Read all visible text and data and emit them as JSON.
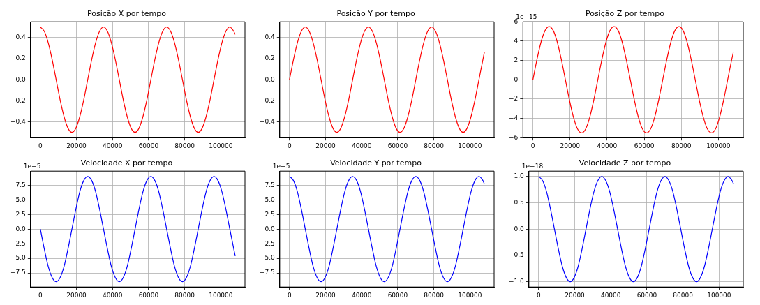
{
  "chart_data": [
    {
      "type": "line",
      "title": "Posição X por tempo",
      "x": [
        0,
        2187.5,
        4375,
        6562.5,
        8750,
        10937.5,
        13125,
        15312.5,
        17500,
        19687.5,
        21875,
        24062.5,
        26250,
        28437.5,
        30625,
        32812.5,
        35000,
        37187.5,
        39375,
        41562.5,
        43750,
        45937.5,
        48125,
        50312.5,
        52500,
        54687.5,
        56875,
        59062.5,
        61250,
        63437.5,
        65625,
        67812.5,
        70000,
        72187.5,
        74375,
        76562.5,
        78750,
        80937.5,
        83125,
        85312.5,
        87500,
        89687.5,
        91875,
        94062.5,
        96250,
        98437.5,
        100625,
        102812.5,
        105000,
        107187.5,
        108000
      ],
      "xlim": [
        -5400,
        113400
      ],
      "xticks": [
        0,
        20000,
        40000,
        60000,
        80000,
        100000
      ],
      "ylim": [
        -0.55,
        0.55
      ],
      "yticks": [
        {
          "value": -0.4,
          "label": "−0.4"
        },
        {
          "value": -0.2,
          "label": "−0.2"
        },
        {
          "value": 0,
          "label": "0.0"
        },
        {
          "value": 0.2,
          "label": "0.2"
        },
        {
          "value": 0.4,
          "label": "0.4"
        }
      ],
      "grid": true,
      "series": [
        {
          "color": "#ff0000",
          "values": [
            0.5,
            0.46,
            0.35,
            0.19,
            0,
            -0.19,
            -0.35,
            -0.46,
            -0.5,
            -0.46,
            -0.35,
            -0.19,
            0,
            0.19,
            0.35,
            0.46,
            0.5,
            0.46,
            0.35,
            0.19,
            0,
            -0.19,
            -0.35,
            -0.46,
            -0.5,
            -0.46,
            -0.35,
            -0.19,
            0,
            0.19,
            0.35,
            0.46,
            0.5,
            0.46,
            0.35,
            0.19,
            0,
            -0.19,
            -0.35,
            -0.46,
            -0.5,
            -0.46,
            -0.35,
            -0.19,
            0,
            0.19,
            0.35,
            0.46,
            0.5,
            0.46,
            0.43
          ]
        }
      ]
    },
    {
      "type": "line",
      "title": "Posição Y por tempo",
      "x": [
        0,
        2187.5,
        4375,
        6562.5,
        8750,
        10937.5,
        13125,
        15312.5,
        17500,
        19687.5,
        21875,
        24062.5,
        26250,
        28437.5,
        30625,
        32812.5,
        35000,
        37187.5,
        39375,
        41562.5,
        43750,
        45937.5,
        48125,
        50312.5,
        52500,
        54687.5,
        56875,
        59062.5,
        61250,
        63437.5,
        65625,
        67812.5,
        70000,
        72187.5,
        74375,
        76562.5,
        78750,
        80937.5,
        83125,
        85312.5,
        87500,
        89687.5,
        91875,
        94062.5,
        96250,
        98437.5,
        100625,
        102812.5,
        105000,
        107187.5,
        108000
      ],
      "xlim": [
        -5400,
        113400
      ],
      "xticks": [
        0,
        20000,
        40000,
        60000,
        80000,
        100000
      ],
      "ylim": [
        -0.55,
        0.55
      ],
      "yticks": [
        {
          "value": -0.4,
          "label": "−0.4"
        },
        {
          "value": -0.2,
          "label": "−0.2"
        },
        {
          "value": 0,
          "label": "0.0"
        },
        {
          "value": 0.2,
          "label": "0.2"
        },
        {
          "value": 0.4,
          "label": "0.4"
        }
      ],
      "grid": true,
      "series": [
        {
          "color": "#ff0000",
          "values": [
            0,
            0.19,
            0.35,
            0.46,
            0.5,
            0.46,
            0.35,
            0.19,
            0,
            -0.19,
            -0.35,
            -0.46,
            -0.5,
            -0.46,
            -0.35,
            -0.19,
            0,
            0.19,
            0.35,
            0.46,
            0.5,
            0.46,
            0.35,
            0.19,
            0,
            -0.19,
            -0.35,
            -0.46,
            -0.5,
            -0.46,
            -0.35,
            -0.19,
            0,
            0.19,
            0.35,
            0.46,
            0.5,
            0.46,
            0.35,
            0.19,
            0,
            -0.19,
            -0.35,
            -0.46,
            -0.5,
            -0.46,
            -0.35,
            -0.19,
            0,
            0.19,
            0.26
          ]
        }
      ]
    },
    {
      "type": "line",
      "title": "Posição Z por tempo",
      "annotations": [
        "1e−15"
      ],
      "x": [
        0,
        2187.5,
        4375,
        6562.5,
        8750,
        10937.5,
        13125,
        15312.5,
        17500,
        19687.5,
        21875,
        24062.5,
        26250,
        28437.5,
        30625,
        32812.5,
        35000,
        37187.5,
        39375,
        41562.5,
        43750,
        45937.5,
        48125,
        50312.5,
        52500,
        54687.5,
        56875,
        59062.5,
        61250,
        63437.5,
        65625,
        67812.5,
        70000,
        72187.5,
        74375,
        76562.5,
        78750,
        80937.5,
        83125,
        85312.5,
        87500,
        89687.5,
        91875,
        94062.5,
        96250,
        98437.5,
        100625,
        102812.5,
        105000,
        107187.5,
        108000
      ],
      "xlim": [
        -5400,
        113400
      ],
      "xticks": [
        0,
        20000,
        40000,
        60000,
        80000,
        100000
      ],
      "ylim": [
        -6,
        6
      ],
      "yticks": [
        {
          "value": -6,
          "label": "−6"
        },
        {
          "value": -4,
          "label": "−4"
        },
        {
          "value": -2,
          "label": "−2"
        },
        0,
        2,
        4,
        6
      ],
      "grid": true,
      "series": [
        {
          "color": "#ff0000",
          "values": [
            0,
            2.1,
            3.9,
            5.1,
            5.5,
            5.1,
            3.9,
            2.1,
            0,
            -2.1,
            -3.9,
            -5.1,
            -5.5,
            -5.1,
            -3.9,
            -2.1,
            0,
            2.1,
            3.9,
            5.1,
            5.5,
            5.1,
            3.9,
            2.1,
            0,
            -2.1,
            -3.9,
            -5.1,
            -5.5,
            -5.1,
            -3.9,
            -2.1,
            0,
            2.1,
            3.9,
            5.1,
            5.5,
            5.1,
            3.9,
            2.1,
            0,
            -2.1,
            -3.9,
            -5.1,
            -5.5,
            -5.1,
            -3.9,
            -2.1,
            0,
            2.1,
            2.8
          ]
        }
      ]
    },
    {
      "type": "line",
      "title": "Velocidade X por tempo",
      "annotations": [
        "1e−5"
      ],
      "x": [
        0,
        2187.5,
        4375,
        6562.5,
        8750,
        10937.5,
        13125,
        15312.5,
        17500,
        19687.5,
        21875,
        24062.5,
        26250,
        28437.5,
        30625,
        32812.5,
        35000,
        37187.5,
        39375,
        41562.5,
        43750,
        45937.5,
        48125,
        50312.5,
        52500,
        54687.5,
        56875,
        59062.5,
        61250,
        63437.5,
        65625,
        67812.5,
        70000,
        72187.5,
        74375,
        76562.5,
        78750,
        80937.5,
        83125,
        85312.5,
        87500,
        89687.5,
        91875,
        94062.5,
        96250,
        98437.5,
        100625,
        102812.5,
        105000,
        107187.5,
        108000
      ],
      "xlim": [
        -5400,
        113400
      ],
      "xticks": [
        0,
        20000,
        40000,
        60000,
        80000,
        100000
      ],
      "ylim": [
        -9.9,
        9.9
      ],
      "yticks": [
        {
          "value": -7.5,
          "label": "−7.5"
        },
        {
          "value": -5,
          "label": "−5.0"
        },
        {
          "value": -2.5,
          "label": "−2.5"
        },
        {
          "value": 0,
          "label": "0.0"
        },
        {
          "value": 2.5,
          "label": "2.5"
        },
        {
          "value": 5,
          "label": "5.0"
        },
        {
          "value": 7.5,
          "label": "7.5"
        }
      ],
      "grid": true,
      "series": [
        {
          "color": "#0000ff",
          "values": [
            0,
            -3.4,
            -6.4,
            -8.3,
            -9,
            -8.3,
            -6.4,
            -3.4,
            0,
            3.4,
            6.4,
            8.3,
            9,
            8.3,
            6.4,
            3.4,
            0,
            -3.4,
            -6.4,
            -8.3,
            -9,
            -8.3,
            -6.4,
            -3.4,
            0,
            3.4,
            6.4,
            8.3,
            9,
            8.3,
            6.4,
            3.4,
            0,
            -3.4,
            -6.4,
            -8.3,
            -9,
            -8.3,
            -6.4,
            -3.4,
            0,
            3.4,
            6.4,
            8.3,
            9,
            8.3,
            6.4,
            3.4,
            0,
            -3.4,
            -4.6
          ]
        }
      ]
    },
    {
      "type": "line",
      "title": "Velocidade Y por tempo",
      "annotations": [
        "1e−5"
      ],
      "x": [
        0,
        2187.5,
        4375,
        6562.5,
        8750,
        10937.5,
        13125,
        15312.5,
        17500,
        19687.5,
        21875,
        24062.5,
        26250,
        28437.5,
        30625,
        32812.5,
        35000,
        37187.5,
        39375,
        41562.5,
        43750,
        45937.5,
        48125,
        50312.5,
        52500,
        54687.5,
        56875,
        59062.5,
        61250,
        63437.5,
        65625,
        67812.5,
        70000,
        72187.5,
        74375,
        76562.5,
        78750,
        80937.5,
        83125,
        85312.5,
        87500,
        89687.5,
        91875,
        94062.5,
        96250,
        98437.5,
        100625,
        102812.5,
        105000,
        107187.5,
        108000
      ],
      "xlim": [
        -5400,
        113400
      ],
      "xticks": [
        0,
        20000,
        40000,
        60000,
        80000,
        100000
      ],
      "ylim": [
        -9.9,
        9.9
      ],
      "yticks": [
        {
          "value": -7.5,
          "label": "−7.5"
        },
        {
          "value": -5,
          "label": "−5.0"
        },
        {
          "value": -2.5,
          "label": "−2.5"
        },
        {
          "value": 0,
          "label": "0.0"
        },
        {
          "value": 2.5,
          "label": "2.5"
        },
        {
          "value": 5,
          "label": "5.0"
        },
        {
          "value": 7.5,
          "label": "7.5"
        }
      ],
      "grid": true,
      "series": [
        {
          "color": "#0000ff",
          "values": [
            9,
            8.3,
            6.4,
            3.4,
            0,
            -3.4,
            -6.4,
            -8.3,
            -9,
            -8.3,
            -6.4,
            -3.4,
            0,
            3.4,
            6.4,
            8.3,
            9,
            8.3,
            6.4,
            3.4,
            0,
            -3.4,
            -6.4,
            -8.3,
            -9,
            -8.3,
            -6.4,
            -3.4,
            0,
            3.4,
            6.4,
            8.3,
            9,
            8.3,
            6.4,
            3.4,
            0,
            -3.4,
            -6.4,
            -8.3,
            -9,
            -8.3,
            -6.4,
            -3.4,
            0,
            3.4,
            6.4,
            8.3,
            9,
            8.3,
            7.7
          ]
        }
      ]
    },
    {
      "type": "line",
      "title": "Velocidade Z por tempo",
      "annotations": [
        "1e−18"
      ],
      "x": [
        0,
        2187.5,
        4375,
        6562.5,
        8750,
        10937.5,
        13125,
        15312.5,
        17500,
        19687.5,
        21875,
        24062.5,
        26250,
        28437.5,
        30625,
        32812.5,
        35000,
        37187.5,
        39375,
        41562.5,
        43750,
        45937.5,
        48125,
        50312.5,
        52500,
        54687.5,
        56875,
        59062.5,
        61250,
        63437.5,
        65625,
        67812.5,
        70000,
        72187.5,
        74375,
        76562.5,
        78750,
        80937.5,
        83125,
        85312.5,
        87500,
        89687.5,
        91875,
        94062.5,
        96250,
        98437.5,
        100625,
        102812.5,
        105000,
        107187.5,
        108000
      ],
      "xlim": [
        -5400,
        113400
      ],
      "xticks": [
        0,
        20000,
        40000,
        60000,
        80000,
        100000
      ],
      "ylim": [
        -1.1,
        1.1
      ],
      "yticks": [
        {
          "value": -1,
          "label": "−1.0"
        },
        {
          "value": -0.5,
          "label": "−0.5"
        },
        {
          "value": 0,
          "label": "0.0"
        },
        {
          "value": 0.5,
          "label": "0.5"
        },
        {
          "value": 1,
          "label": "1.0"
        }
      ],
      "grid": true,
      "series": [
        {
          "color": "#0000ff",
          "values": [
            1,
            0.92,
            0.71,
            0.38,
            0,
            -0.38,
            -0.71,
            -0.92,
            -1,
            -0.92,
            -0.71,
            -0.38,
            0,
            0.38,
            0.71,
            0.92,
            1,
            0.92,
            0.71,
            0.38,
            0,
            -0.38,
            -0.71,
            -0.92,
            -1,
            -0.92,
            -0.71,
            -0.38,
            0,
            0.38,
            0.71,
            0.92,
            1,
            0.92,
            0.71,
            0.38,
            0,
            -0.38,
            -0.71,
            -0.92,
            -1,
            -0.92,
            -0.71,
            -0.38,
            0,
            0.38,
            0.71,
            0.92,
            1,
            0.92,
            0.86
          ]
        }
      ]
    }
  ]
}
